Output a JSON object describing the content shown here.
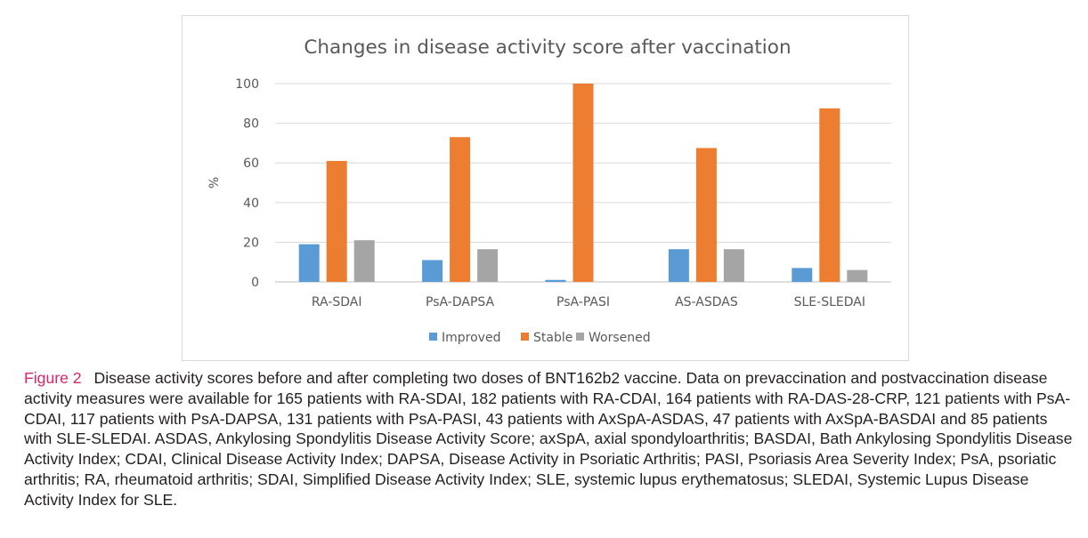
{
  "chart_data": {
    "type": "bar",
    "title": "Changes in disease activity score after vaccination",
    "xlabel": "",
    "ylabel": "%",
    "categories": [
      "RA-SDAI",
      "PsA-DAPSA",
      "PsA-PASI",
      "AS-ASDAS",
      "SLE-SLEDAI"
    ],
    "series": [
      {
        "name": "Improved",
        "color": "#5b9bd5",
        "values": [
          19,
          11,
          1,
          16.5,
          7
        ]
      },
      {
        "name": "Stable",
        "color": "#ed7d31",
        "values": [
          61,
          73,
          100,
          67.5,
          87.5
        ]
      },
      {
        "name": "Worsened",
        "color": "#a5a5a5",
        "values": [
          21,
          16.5,
          0,
          16.5,
          6
        ]
      }
    ],
    "ylim": [
      0,
      100
    ],
    "yticks": [
      "0",
      "20",
      "40",
      "60",
      "80",
      "100"
    ],
    "grid": true,
    "legend_position": "bottom"
  },
  "caption": {
    "label": "Figure 2",
    "text": "Disease activity scores before and after completing two doses of BNT162b2 vaccine. Data on prevaccination and postvaccination disease activity measures were available for 165 patients with RA-SDAI, 182 patients with RA-CDAI, 164 patients with RA-DAS-28-CRP, 121 patients with PsA-CDAI, 117 patients with PsA-DAPSA, 131 patients with PsA-PASI, 43 patients with AxSpA-ASDAS, 47 patients with AxSpA-BASDAI and 85 patients with SLE-SLEDAI. ASDAS, Ankylosing Spondylitis Disease Activity Score; axSpA, axial spondyloarthritis; BASDAI, Bath Ankylosing Spondylitis Disease Activity Index; CDAI, Clinical Disease Activity Index; DAPSA, Disease Activity in Psoriatic Arthritis; PASI, Psoriasis Area Severity Index; PsA, psoriatic arthritis; RA, rheumatoid arthritis; SDAI, Simplified Disease Activity Index; SLE, systemic lupus erythematosus; SLEDAI, Systemic Lupus Disease Activity Index for SLE."
  }
}
